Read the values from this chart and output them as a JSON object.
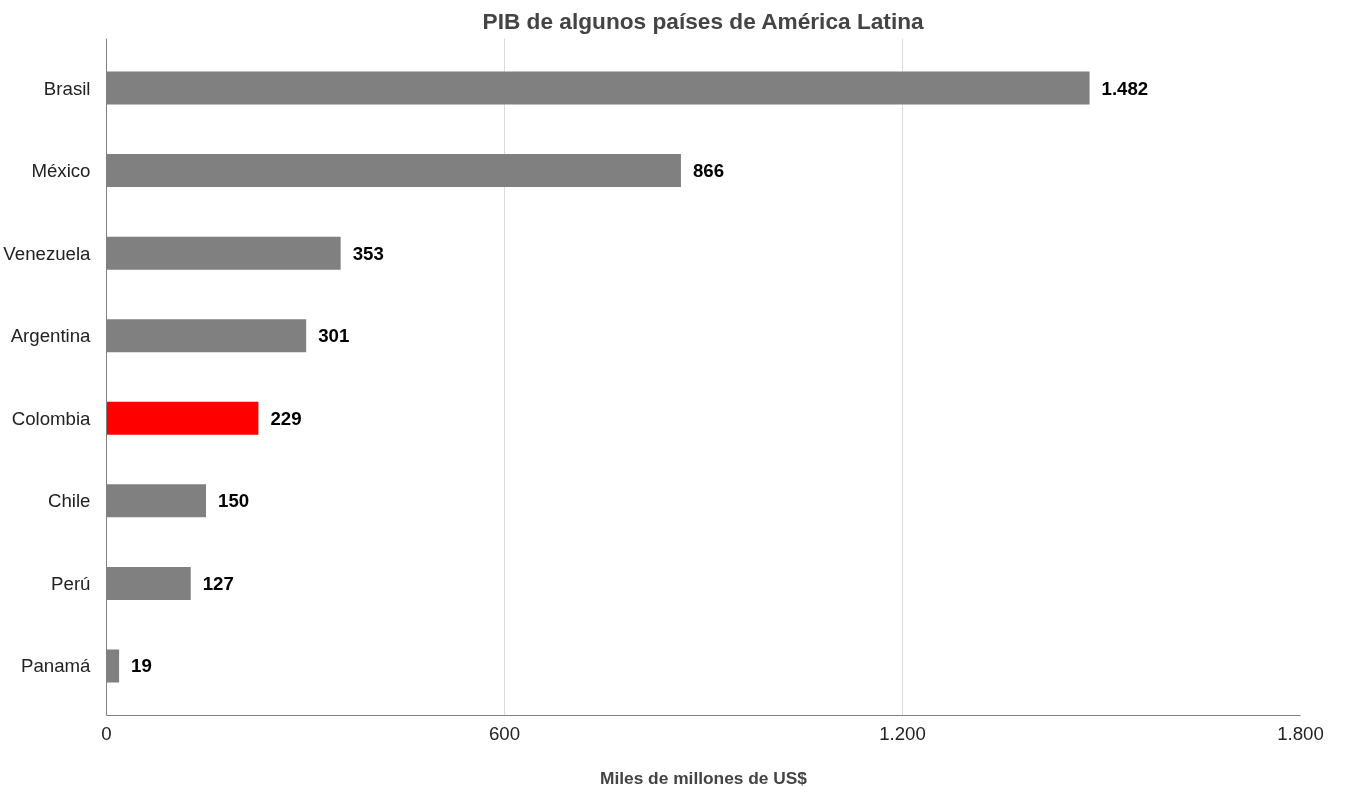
{
  "chart_data": {
    "type": "bar",
    "orientation": "horizontal",
    "title": "PIB de algunos países de América Latina",
    "xlabel": "Miles de millones de US$",
    "categories": [
      "Brasil",
      "México",
      "Venezuela",
      "Argentina",
      "Colombia",
      "Chile",
      "Perú",
      "Panamá"
    ],
    "values": [
      1482,
      866,
      353,
      301,
      229,
      150,
      127,
      19
    ],
    "value_labels": [
      "1.482",
      "866",
      "353",
      "301",
      "229",
      "150",
      "127",
      "19"
    ],
    "colors": [
      "#808080",
      "#808080",
      "#808080",
      "#808080",
      "#ff0000",
      "#808080",
      "#808080",
      "#808080"
    ],
    "xlim": [
      0,
      1800
    ],
    "xticks": [
      0,
      600,
      {
        "value": 1200,
        "label": "1.200"
      },
      {
        "value": 1800,
        "label": "1.800"
      }
    ],
    "grid": "x"
  }
}
